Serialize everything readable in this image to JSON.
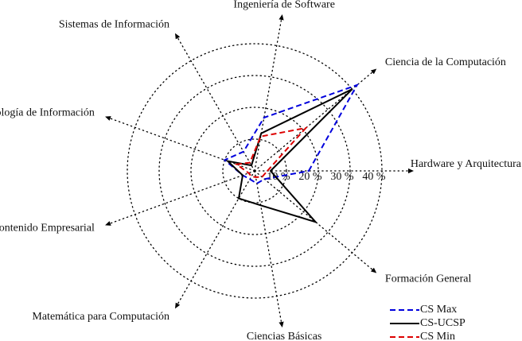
{
  "chart_data": {
    "type": "radar",
    "categories": [
      "Hardware y Arquitectura",
      "Ciencia de la Computación",
      "Ingeniería de Software",
      "Sistemas de Información",
      "Tecnología de Información",
      "Contenido Empresarial",
      "Matemática para Computación",
      "Ciencias Básicas",
      "Formación General"
    ],
    "rlim": [
      0,
      50
    ],
    "rticks": [
      {
        "value": 10,
        "label": "10 %"
      },
      {
        "value": 20,
        "label": "20 %"
      },
      {
        "value": 30,
        "label": "30 %"
      },
      {
        "value": 40,
        "label": "40 %"
      }
    ],
    "grid": true,
    "legend": "lower right",
    "series": [
      {
        "name": "CS Max",
        "color": "#0000dd",
        "dash": "dashed",
        "values": [
          17,
          42,
          17,
          7,
          10,
          4,
          3,
          4,
          4
        ]
      },
      {
        "name": "CS-UCSP",
        "color": "#000000",
        "dash": "solid",
        "values": [
          5,
          40,
          12,
          2,
          9,
          4,
          10,
          11,
          25
        ]
      },
      {
        "name": "CS Min",
        "color": "#dd0000",
        "dash": "dashed",
        "values": [
          4,
          21,
          11,
          3,
          6,
          2,
          2,
          2,
          3
        ]
      }
    ]
  }
}
